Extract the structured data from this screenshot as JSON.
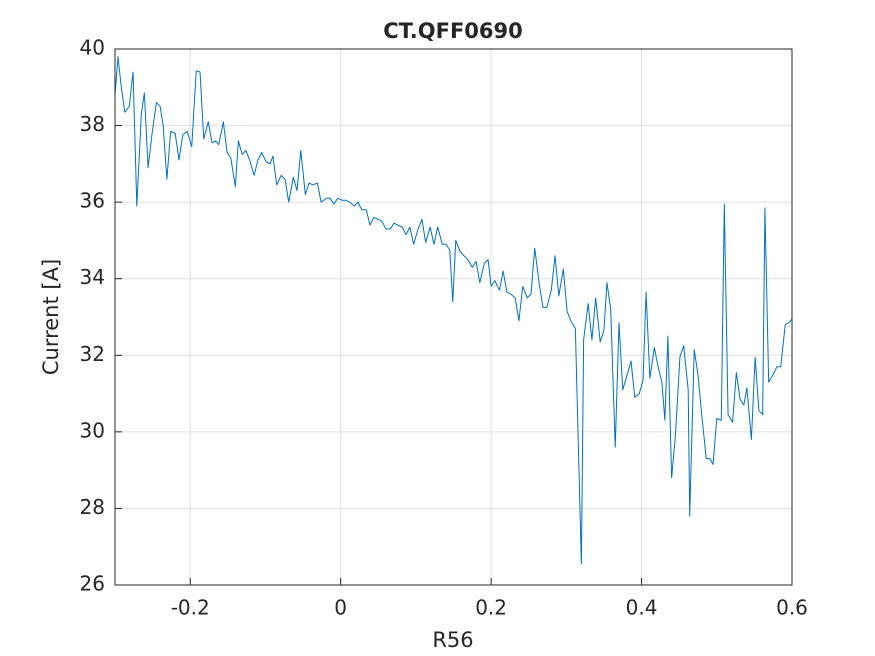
{
  "chart_data": {
    "type": "line",
    "title": "CT.QFF0690",
    "x_label": "R56",
    "y_label": "Current [A]",
    "xlim": [
      -0.3,
      0.6
    ],
    "xticks": [
      -0.2,
      0,
      0.2,
      0.4,
      0.6
    ],
    "ylim": [
      26,
      40
    ],
    "yticks": [
      26,
      28,
      30,
      32,
      34,
      36,
      38,
      40
    ],
    "grid": true,
    "series": [
      {
        "name": "CT.QFF0690",
        "color": "#0072bd",
        "x": [
          -0.3,
          -0.296,
          -0.292,
          -0.287,
          -0.281,
          -0.276,
          -0.271,
          -0.265,
          -0.261,
          -0.256,
          -0.251,
          -0.245,
          -0.24,
          -0.236,
          -0.231,
          -0.226,
          -0.22,
          -0.215,
          -0.21,
          -0.204,
          -0.198,
          -0.192,
          -0.187,
          -0.182,
          -0.176,
          -0.171,
          -0.166,
          -0.162,
          -0.156,
          -0.151,
          -0.146,
          -0.14,
          -0.136,
          -0.131,
          -0.126,
          -0.121,
          -0.115,
          -0.11,
          -0.105,
          -0.099,
          -0.094,
          -0.09,
          -0.085,
          -0.079,
          -0.074,
          -0.069,
          -0.063,
          -0.058,
          -0.053,
          -0.047,
          -0.042,
          -0.037,
          -0.031,
          -0.026,
          -0.019,
          -0.014,
          -0.009,
          -0.004,
          0.002,
          0.007,
          0.012,
          0.018,
          0.023,
          0.028,
          0.034,
          0.039,
          0.044,
          0.05,
          0.055,
          0.06,
          0.066,
          0.071,
          0.076,
          0.082,
          0.087,
          0.092,
          0.097,
          0.103,
          0.108,
          0.113,
          0.119,
          0.124,
          0.129,
          0.135,
          0.14,
          0.145,
          0.149,
          0.153,
          0.159,
          0.164,
          0.169,
          0.175,
          0.18,
          0.185,
          0.191,
          0.196,
          0.2,
          0.205,
          0.211,
          0.216,
          0.221,
          0.226,
          0.232,
          0.237,
          0.242,
          0.248,
          0.253,
          0.258,
          0.264,
          0.269,
          0.274,
          0.28,
          0.285,
          0.29,
          0.296,
          0.301,
          0.306,
          0.312,
          0.32,
          0.323,
          0.329,
          0.334,
          0.339,
          0.345,
          0.35,
          0.354,
          0.359,
          0.365,
          0.37,
          0.375,
          0.381,
          0.386,
          0.391,
          0.397,
          0.402,
          0.406,
          0.411,
          0.417,
          0.422,
          0.427,
          0.431,
          0.435,
          0.44,
          0.445,
          0.451,
          0.456,
          0.462,
          0.464,
          0.47,
          0.475,
          0.48,
          0.486,
          0.491,
          0.495,
          0.5,
          0.506,
          0.51,
          0.515,
          0.521,
          0.526,
          0.531,
          0.536,
          0.54,
          0.546,
          0.551,
          0.556,
          0.561,
          0.564,
          0.569,
          0.575,
          0.58,
          0.585,
          0.591,
          0.596,
          0.6
        ],
        "values": [
          38.8,
          39.8,
          39.06,
          38.35,
          38.5,
          39.4,
          35.9,
          38.3,
          38.85,
          36.9,
          37.75,
          38.6,
          38.5,
          38.0,
          36.6,
          37.85,
          37.8,
          37.1,
          37.75,
          37.85,
          37.45,
          39.43,
          39.4,
          37.65,
          38.1,
          37.55,
          37.6,
          37.5,
          38.1,
          37.3,
          37.15,
          36.4,
          37.6,
          37.25,
          37.35,
          37.1,
          36.7,
          37.1,
          37.3,
          37.05,
          37.0,
          37.2,
          36.45,
          36.7,
          36.6,
          36.0,
          36.65,
          36.3,
          37.35,
          36.2,
          36.5,
          36.45,
          36.5,
          36.0,
          36.1,
          36.1,
          35.95,
          36.1,
          36.05,
          36.05,
          36.0,
          35.9,
          36.0,
          35.8,
          35.8,
          35.4,
          35.6,
          35.55,
          35.5,
          35.3,
          35.3,
          35.45,
          35.4,
          35.35,
          35.15,
          35.35,
          34.9,
          35.3,
          35.55,
          34.95,
          35.35,
          34.9,
          35.35,
          34.9,
          34.9,
          34.75,
          33.4,
          35.0,
          34.7,
          34.6,
          34.5,
          34.3,
          34.45,
          33.9,
          34.4,
          34.5,
          33.8,
          33.95,
          33.7,
          34.2,
          33.65,
          33.6,
          33.5,
          32.9,
          33.8,
          33.5,
          33.6,
          34.8,
          33.85,
          33.25,
          33.25,
          33.7,
          34.6,
          33.55,
          34.25,
          33.15,
          32.9,
          32.7,
          26.55,
          32.4,
          33.35,
          32.4,
          33.5,
          32.35,
          32.65,
          33.9,
          33.2,
          29.6,
          32.85,
          31.1,
          31.5,
          31.85,
          30.9,
          31.0,
          31.35,
          33.65,
          31.4,
          32.2,
          31.7,
          31.3,
          30.3,
          32.5,
          28.8,
          29.9,
          31.95,
          32.25,
          31.1,
          27.8,
          32.15,
          31.5,
          30.45,
          29.3,
          29.3,
          29.15,
          30.35,
          30.3,
          35.95,
          30.45,
          30.25,
          31.55,
          30.85,
          30.7,
          31.15,
          29.8,
          31.95,
          30.55,
          30.45,
          35.85,
          31.3,
          31.5,
          31.7,
          31.7,
          32.8,
          32.85,
          32.95
        ]
      }
    ]
  }
}
